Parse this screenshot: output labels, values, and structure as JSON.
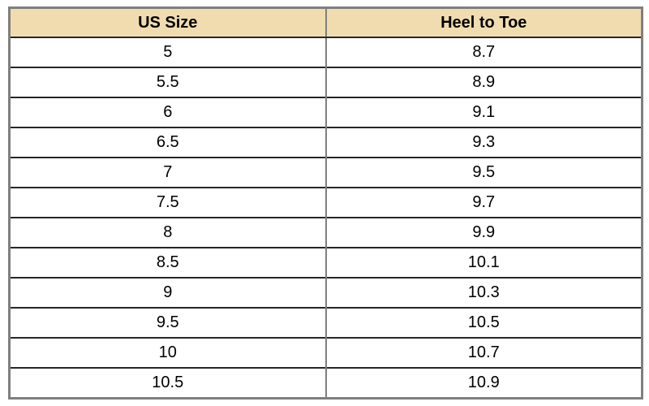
{
  "chart_data": {
    "type": "table",
    "columns": [
      "US Size",
      "Heel to Toe"
    ],
    "rows": [
      [
        "5",
        "8.7"
      ],
      [
        "5.5",
        "8.9"
      ],
      [
        "6",
        "9.1"
      ],
      [
        "6.5",
        "9.3"
      ],
      [
        "7",
        "9.5"
      ],
      [
        "7.5",
        "9.7"
      ],
      [
        "8",
        "9.9"
      ],
      [
        "8.5",
        "10.1"
      ],
      [
        "9",
        "10.3"
      ],
      [
        "9.5",
        "10.5"
      ],
      [
        "10",
        "10.7"
      ],
      [
        "10.5",
        "10.9"
      ]
    ],
    "colors": {
      "header_bg": "#f0dcaf",
      "outer_border": "#7f7f7f",
      "row_divider": "#262626",
      "text": "#000000"
    }
  }
}
